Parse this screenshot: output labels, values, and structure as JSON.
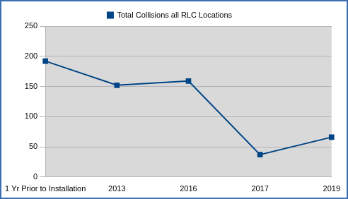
{
  "chart_data": {
    "type": "line",
    "categories": [
      "1 Yr Prior to Installation",
      "2013",
      "2016",
      "2017",
      "2019"
    ],
    "series": [
      {
        "name": "Total Collisions all RLC Locations",
        "color": "#004586",
        "values": [
          192,
          152,
          159,
          37,
          66
        ],
        "marker": "square",
        "line_style": "solid"
      }
    ],
    "ylim": [
      0,
      250
    ],
    "yticks": [
      0,
      50,
      100,
      150,
      200,
      250
    ],
    "grid": true,
    "legend": "top"
  }
}
